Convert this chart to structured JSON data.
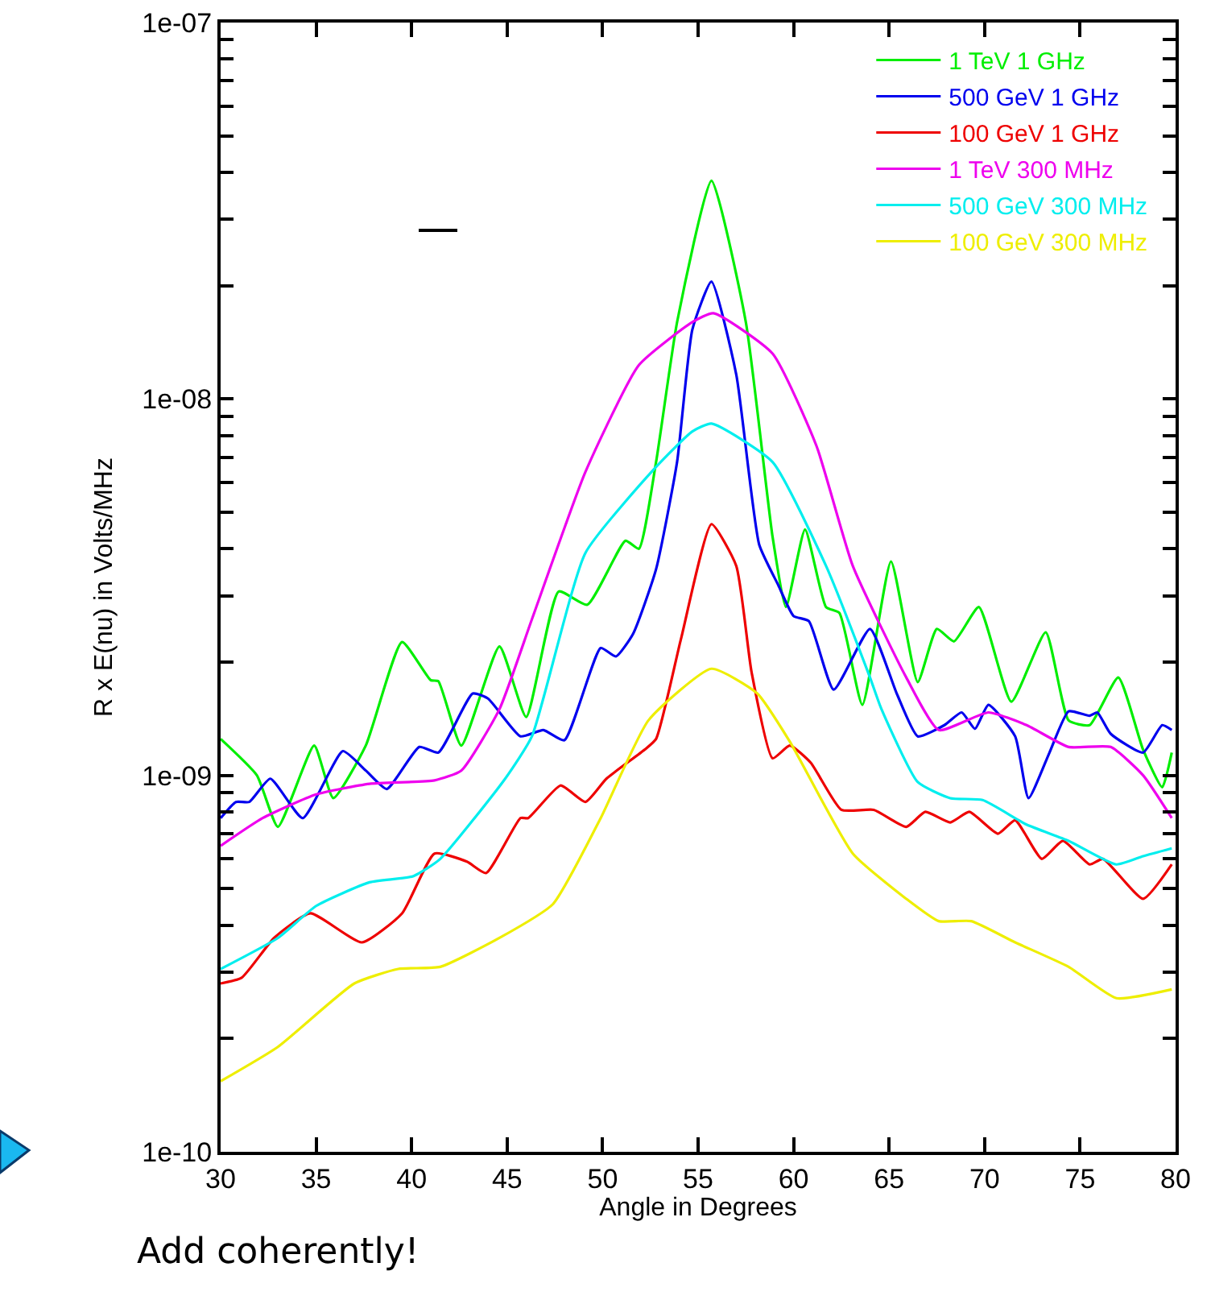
{
  "chart_data": {
    "type": "line",
    "xlabel": "Angle in Degrees",
    "ylabel": "R x E(nu) in Volts/MHz",
    "log": true,
    "grid": false,
    "legend": "top right",
    "marker": "none",
    "line_style": "solid",
    "xlim": [
      30,
      80
    ],
    "xticks": [
      30,
      35,
      40,
      45,
      50,
      55,
      60,
      65,
      70,
      75,
      80
    ],
    "ylim": [
      1e-10,
      1e-07
    ],
    "yticks": [
      {
        "value": 1e-10,
        "label": "1e-10"
      },
      {
        "value": 2e-10,
        "label": null
      },
      {
        "value": 3e-10,
        "label": null
      },
      {
        "value": 4e-10,
        "label": null
      },
      {
        "value": 5e-10,
        "label": null
      },
      {
        "value": 6e-10,
        "label": null
      },
      {
        "value": 7e-10,
        "label": null
      },
      {
        "value": 8e-10,
        "label": null
      },
      {
        "value": 9e-10,
        "label": null
      },
      {
        "value": 1e-09,
        "label": "1e-09"
      },
      {
        "value": 2e-09,
        "label": null
      },
      {
        "value": 3e-09,
        "label": null
      },
      {
        "value": 4e-09,
        "label": null
      },
      {
        "value": 5e-09,
        "label": null
      },
      {
        "value": 6e-09,
        "label": null
      },
      {
        "value": 7e-09,
        "label": null
      },
      {
        "value": 8e-09,
        "label": null
      },
      {
        "value": 9e-09,
        "label": null
      },
      {
        "value": 1e-08,
        "label": "1e-08"
      },
      {
        "value": 2e-08,
        "label": null
      },
      {
        "value": 3e-08,
        "label": null
      },
      {
        "value": 4e-08,
        "label": null
      },
      {
        "value": 5e-08,
        "label": null
      },
      {
        "value": 6e-08,
        "label": null
      },
      {
        "value": 7e-08,
        "label": null
      },
      {
        "value": 8e-08,
        "label": null
      },
      {
        "value": 9e-08,
        "label": null
      },
      {
        "value": 1e-07,
        "label": "1e-07"
      }
    ],
    "annotations": [
      "Add coherently!"
    ],
    "series": [
      {
        "name": "1 TeV 1 GHz",
        "color": "#00ee00",
        "x": [
          30,
          31.9,
          33,
          34.9,
          35.9,
          37.6,
          39.5,
          41,
          41.4,
          42.6,
          44.6,
          46,
          47.7,
          49.2,
          51.2,
          51.9,
          52.8,
          53.9,
          55.7,
          57.5,
          58.9,
          59.6,
          60.6,
          61.7,
          62.4,
          63.6,
          65.1,
          66.5,
          67.5,
          68.4,
          69.7,
          71.4,
          73.2,
          74.4,
          75.5,
          77,
          78.3,
          79.3,
          79.8
        ],
        "values": [
          1.25e-09,
          1e-09,
          7.3e-10,
          1.2e-09,
          8.7e-10,
          1.2e-09,
          2.26e-09,
          1.79e-09,
          1.78e-09,
          1.2e-09,
          2.2e-09,
          1.43e-09,
          3.08e-09,
          2.84e-09,
          4.2e-09,
          4e-09,
          6.8e-09,
          1.6e-08,
          3.8e-08,
          1.6e-08,
          4.3e-09,
          2.8e-09,
          4.5e-09,
          2.8e-09,
          2.7e-09,
          1.54e-09,
          3.7e-09,
          1.77e-09,
          2.45e-09,
          2.27e-09,
          2.8e-09,
          1.57e-09,
          2.4e-09,
          1.4e-09,
          1.36e-09,
          1.82e-09,
          1.17e-09,
          9.3e-10,
          1.15e-09
        ]
      },
      {
        "name": "500 GeV 1 GHz",
        "color": "#0000ee",
        "x": [
          30,
          30.8,
          31.5,
          32.6,
          34.3,
          36.4,
          37.6,
          38.7,
          40.4,
          41.4,
          43.2,
          44,
          45.7,
          46.9,
          48,
          49.9,
          50.7,
          51.6,
          52.8,
          53.9,
          54.7,
          55.7,
          57,
          58.2,
          59.2,
          60,
          60.8,
          62.1,
          64,
          65.4,
          66.5,
          67.9,
          68.8,
          69.5,
          70.2,
          71.6,
          72.3,
          73.4,
          74.4,
          75.5,
          75.9,
          76.6,
          78.3,
          79.3,
          79.8
        ],
        "values": [
          7.7e-10,
          8.5e-10,
          8.5e-10,
          9.8e-10,
          7.7e-10,
          1.16e-09,
          1.03e-09,
          9.2e-10,
          1.19e-09,
          1.15e-09,
          1.65e-09,
          1.6e-09,
          1.27e-09,
          1.32e-09,
          1.24e-09,
          2.18e-09,
          2.07e-09,
          2.38e-09,
          3.53e-09,
          6.8e-09,
          1.53e-08,
          2.05e-08,
          1.16e-08,
          4.1e-09,
          3.2e-09,
          2.65e-09,
          2.57e-09,
          1.69e-09,
          2.45e-09,
          1.65e-09,
          1.27e-09,
          1.36e-09,
          1.47e-09,
          1.33e-09,
          1.54e-09,
          1.27e-09,
          8.7e-10,
          1.15e-09,
          1.48e-09,
          1.44e-09,
          1.47e-09,
          1.29e-09,
          1.15e-09,
          1.36e-09,
          1.32e-09
        ]
      },
      {
        "name": "100 GeV 1 GHz",
        "color": "#ee0000",
        "x": [
          30,
          31.1,
          32.8,
          34.7,
          37.4,
          39.5,
          41.2,
          42.9,
          43.9,
          45.7,
          46.1,
          47.8,
          49.1,
          50.2,
          52.2,
          52.8,
          54.1,
          55.7,
          57,
          57.8,
          58.9,
          59.8,
          60.9,
          62.5,
          64.2,
          65.9,
          66.9,
          68.2,
          69.2,
          70.7,
          71.6,
          73,
          74.1,
          75.5,
          76.2,
          78.3,
          79.8
        ],
        "values": [
          2.8e-10,
          2.9e-10,
          3.7e-10,
          4.3e-10,
          3.6e-10,
          4.3e-10,
          6.2e-10,
          5.9e-10,
          5.5e-10,
          7.7e-10,
          7.7e-10,
          9.4e-10,
          8.5e-10,
          9.8e-10,
          1.17e-09,
          1.25e-09,
          2.3e-09,
          4.65e-09,
          3.6e-09,
          1.88e-09,
          1.11e-09,
          1.2e-09,
          1.08e-09,
          8.1e-10,
          8.1e-10,
          7.3e-10,
          8e-10,
          7.5e-10,
          8e-10,
          7e-10,
          7.6e-10,
          6e-10,
          6.7e-10,
          5.8e-10,
          6e-10,
          4.7e-10,
          5.8e-10
        ]
      },
      {
        "name": "1 TeV 300 MHz",
        "color": "#ee00ee",
        "x": [
          30,
          32.2,
          35,
          37.8,
          41.2,
          42.6,
          44.6,
          46.3,
          49.1,
          51.9,
          54.7,
          55.8,
          58.9,
          61.2,
          63.1,
          65.9,
          67.6,
          70.2,
          72.2,
          74.4,
          76.6,
          78.3,
          79.8
        ],
        "values": [
          6.5e-10,
          7.7e-10,
          8.9e-10,
          9.5e-10,
          9.7e-10,
          1.03e-09,
          1.5e-09,
          2.6e-09,
          6.4e-09,
          1.23e-08,
          1.6e-08,
          1.69e-08,
          1.32e-08,
          7.5e-09,
          3.6e-09,
          1.82e-09,
          1.32e-09,
          1.47e-09,
          1.36e-09,
          1.19e-09,
          1.19e-09,
          1e-09,
          7.7e-10
        ]
      },
      {
        "name": "500 GeV 300 MHz",
        "color": "#00eeee",
        "x": [
          30,
          33,
          35,
          37.8,
          40.1,
          41.5,
          44.9,
          46.3,
          49.1,
          52.8,
          54.7,
          55.7,
          58.9,
          61.7,
          64,
          64.6,
          66.5,
          68.2,
          69.9,
          72.2,
          74.4,
          76.9,
          78.3,
          79.8
        ],
        "values": [
          3.06e-10,
          3.7e-10,
          4.5e-10,
          5.2e-10,
          5.4e-10,
          6e-10,
          9.8e-10,
          1.27e-09,
          3.9e-09,
          6.6e-09,
          8.2e-09,
          8.6e-09,
          6.8e-09,
          3.6e-09,
          1.82e-09,
          1.5e-09,
          9.6e-10,
          8.7e-10,
          8.6e-10,
          7.4e-10,
          6.7e-10,
          5.8e-10,
          6.1e-10,
          6.4e-10
        ]
      },
      {
        "name": "100 GeV 300 MHz",
        "color": "#eeee00",
        "x": [
          30,
          33,
          37,
          39.3,
          41.5,
          44.6,
          47.4,
          49.9,
          52.4,
          55.7,
          58.1,
          59.8,
          63.1,
          65.9,
          67.6,
          69.3,
          71.6,
          74.4,
          76.9,
          79.8
        ],
        "values": [
          1.54e-10,
          1.9e-10,
          2.8e-10,
          3.06e-10,
          3.1e-10,
          3.7e-10,
          4.55e-10,
          7.7e-10,
          1.4e-09,
          1.92e-09,
          1.65e-09,
          1.23e-09,
          6.2e-10,
          4.7e-10,
          4.1e-10,
          4.1e-10,
          3.6e-10,
          3.1e-10,
          2.56e-10,
          2.7e-10
        ]
      }
    ]
  }
}
